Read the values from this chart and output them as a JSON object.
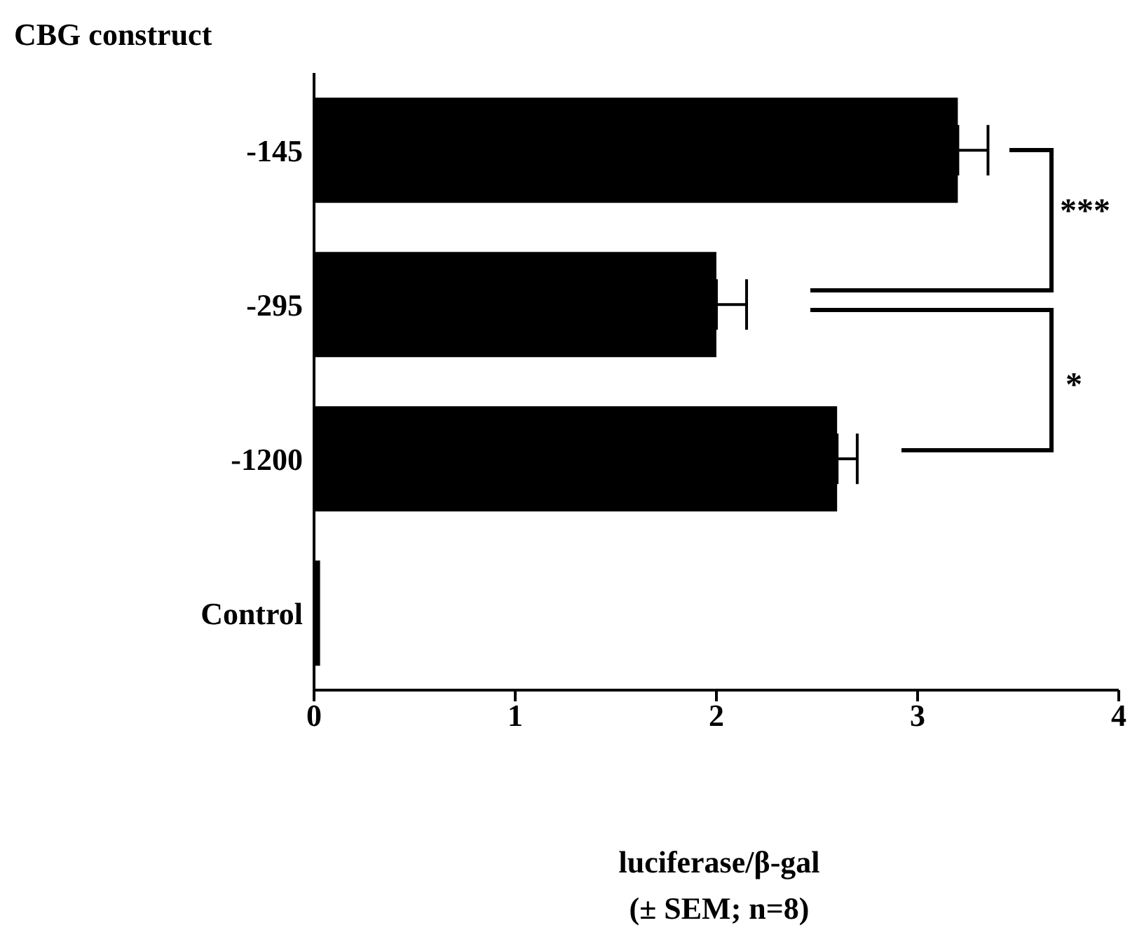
{
  "chart_data": {
    "type": "bar",
    "orientation": "horizontal",
    "ylabel": "CBG construct",
    "xlabel": "luciferase/β-gal\n(± SEM; n=8)",
    "categories": [
      "-145",
      "-295",
      "-1200",
      "Control"
    ],
    "values": [
      3.2,
      2.0,
      2.6,
      0.03
    ],
    "errors": [
      [
        3.2,
        3.35
      ],
      [
        2.0,
        2.15
      ],
      [
        2.6,
        2.7
      ],
      null
    ],
    "color": "#000000",
    "xlim": [
      0,
      4
    ],
    "xticks": [
      0,
      1,
      2,
      3,
      4
    ],
    "annotations": [
      "***",
      "*"
    ]
  }
}
